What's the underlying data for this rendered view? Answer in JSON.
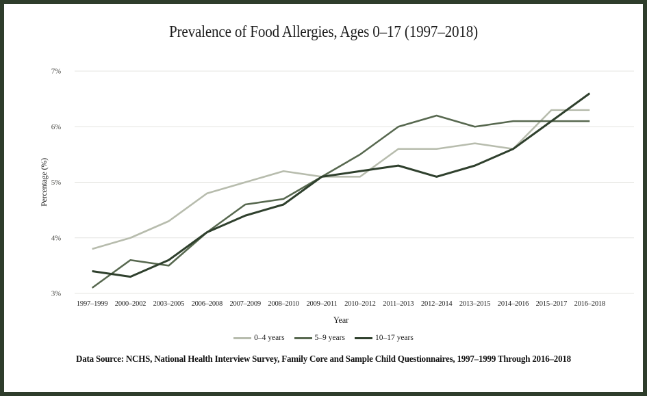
{
  "title": "Prevalence of Food Allergies, Ages 0–17 (1997–2018)",
  "chart_data": {
    "type": "line",
    "title": "Prevalence of Food Allergies, Ages 0–17 (1997–2018)",
    "xlabel": "Year",
    "ylabel": "Percentage (%)",
    "ylim": [
      3,
      7
    ],
    "ytick_labels": [
      "3%",
      "4%",
      "5%",
      "6%",
      "7%"
    ],
    "grid": true,
    "legend_position": "bottom",
    "categories": [
      "1997–1999",
      "2000–2002",
      "2003–2005",
      "2006–2008",
      "2007–2009",
      "2008–2010",
      "2009–2011",
      "2010–2012",
      "2011–2013",
      "2012–2014",
      "2013–2015",
      "2014–2016",
      "2015–2017",
      "2016–2018"
    ],
    "series": [
      {
        "name": "0–4 years",
        "color": "#b7bcad",
        "values": [
          3.8,
          4.0,
          4.3,
          4.8,
          5.0,
          5.2,
          5.1,
          5.1,
          5.6,
          5.6,
          5.7,
          5.6,
          6.3,
          6.3
        ]
      },
      {
        "name": "5–9 years",
        "color": "#57684f",
        "values": [
          3.1,
          3.6,
          3.5,
          4.1,
          4.6,
          4.7,
          5.1,
          5.5,
          6.0,
          6.2,
          6.0,
          6.1,
          6.1,
          6.1
        ]
      },
      {
        "name": "10–17 years",
        "color": "#2f402d",
        "values": [
          3.4,
          3.3,
          3.6,
          4.1,
          4.4,
          4.6,
          5.1,
          5.2,
          5.3,
          5.1,
          5.3,
          5.6,
          6.1,
          6.6
        ]
      }
    ]
  },
  "footer": {
    "data_source": "Data Source: NCHS, National Health Interview Survey, Family Core and Sample Child Questionnaires, 1997–1999 Through 2016–2018"
  },
  "colors": {
    "frame": "#2e3d2b",
    "grid": "#e4e4e0",
    "tick_text": "#4a4a46",
    "axis_text": "#1e1e1e"
  }
}
